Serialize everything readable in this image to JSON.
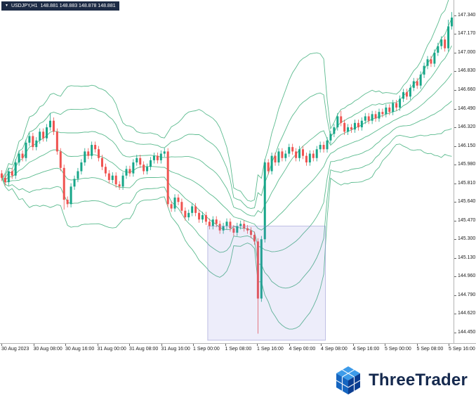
{
  "symbol_bar": {
    "dropdown_icon": "▼",
    "symbol": "USDJPY,H1",
    "quote": "148.881 148.883 148.878 148.881"
  },
  "footer": {
    "brand": "ThreeTrader"
  },
  "chart_data": {
    "type": "candlestick",
    "title": "USDJPY H1 with Bollinger Bands",
    "price_axis_labels": [
      "147.340",
      "147.170",
      "147.000",
      "146.830",
      "146.660",
      "146.490",
      "146.320",
      "146.150",
      "145.980",
      "145.810",
      "145.640",
      "145.470",
      "145.300",
      "145.130",
      "144.960",
      "144.790",
      "144.620",
      "144.450"
    ],
    "time_axis_labels": [
      "30 Aug 2023",
      "30 Aug 08:00",
      "30 Aug 16:00",
      "31 Aug 00:00",
      "31 Aug 08:00",
      "31 Aug 16:00",
      "1 Sep 00:00",
      "1 Sep 08:00",
      "1 Sep 16:00",
      "4 Sep 00:00",
      "4 Sep 08:00",
      "4 Sep 16:00",
      "5 Sep 00:00",
      "5 Sep 08:00",
      "5 Sep 16:00"
    ],
    "price_range": {
      "max": 147.48,
      "min": 144.36
    },
    "grid": "off",
    "candles": {
      "first_open": 145.9,
      "default_wick": 0.03,
      "closes": [
        145.86,
        145.82,
        145.92,
        145.88,
        146.0,
        146.08,
        146.04,
        146.18,
        146.24,
        146.14,
        146.2,
        146.28,
        146.22,
        146.32,
        146.38,
        146.28,
        146.1,
        145.95,
        145.66,
        145.62,
        145.78,
        145.85,
        145.92,
        146.0,
        146.1,
        146.06,
        146.16,
        146.12,
        146.04,
        145.96,
        145.9,
        145.84,
        145.88,
        145.8,
        145.78,
        145.88,
        145.94,
        145.9,
        146.0,
        146.04,
        145.98,
        145.92,
        145.96,
        146.02,
        146.06,
        146.02,
        146.08,
        146.1,
        145.62,
        145.58,
        145.68,
        145.64,
        145.56,
        145.5,
        145.54,
        145.6,
        145.54,
        145.48,
        145.52,
        145.46,
        145.42,
        145.48,
        145.44,
        145.38,
        145.42,
        145.46,
        145.4,
        145.36,
        145.42,
        145.44,
        145.4,
        145.38,
        145.34,
        145.28,
        144.76,
        145.3,
        146.0,
        145.92,
        146.06,
        146.0,
        146.1,
        146.04,
        146.08,
        146.14,
        146.1,
        146.04,
        146.12,
        146.06,
        146.0,
        146.08,
        146.04,
        146.12,
        146.16,
        146.12,
        146.2,
        146.26,
        146.32,
        146.42,
        146.36,
        146.28,
        146.32,
        146.3,
        146.36,
        146.32,
        146.38,
        146.42,
        146.38,
        146.44,
        146.4,
        146.46,
        146.44,
        146.5,
        146.46,
        146.54,
        146.5,
        146.58,
        146.64,
        146.6,
        146.68,
        146.74,
        146.7,
        146.8,
        146.88,
        146.94,
        146.9,
        147.0,
        147.06,
        147.12,
        147.04,
        147.24,
        147.32
      ],
      "overrides": {
        "14": {
          "high": 146.45
        },
        "18": {
          "low": 145.57
        },
        "74": {
          "low": 144.44
        },
        "98": {
          "high": 146.47
        },
        "129": {
          "high": 147.3
        },
        "130": {
          "high": 147.37
        }
      }
    },
    "bollinger": {
      "period": 20,
      "deviations": [
        1,
        2,
        3
      ]
    },
    "selection": {
      "bar_start": 60,
      "bar_end": 94,
      "price_top": 145.42,
      "price_bottom": 144.38
    },
    "colors": {
      "up": "#17a689",
      "down": "#ef5350",
      "band": "#5cbb8f",
      "selection_fill": "#7d7ddd",
      "selection_stroke": "#9090d0",
      "axis_text": "#1c1c1c",
      "symbol_bar_bg": "#1d2b45",
      "brand_navy": "#15294e",
      "logo_blue_top": "#3d9be9",
      "logo_blue_left": "#1565c0",
      "logo_blue_right": "#0a3d91"
    }
  }
}
